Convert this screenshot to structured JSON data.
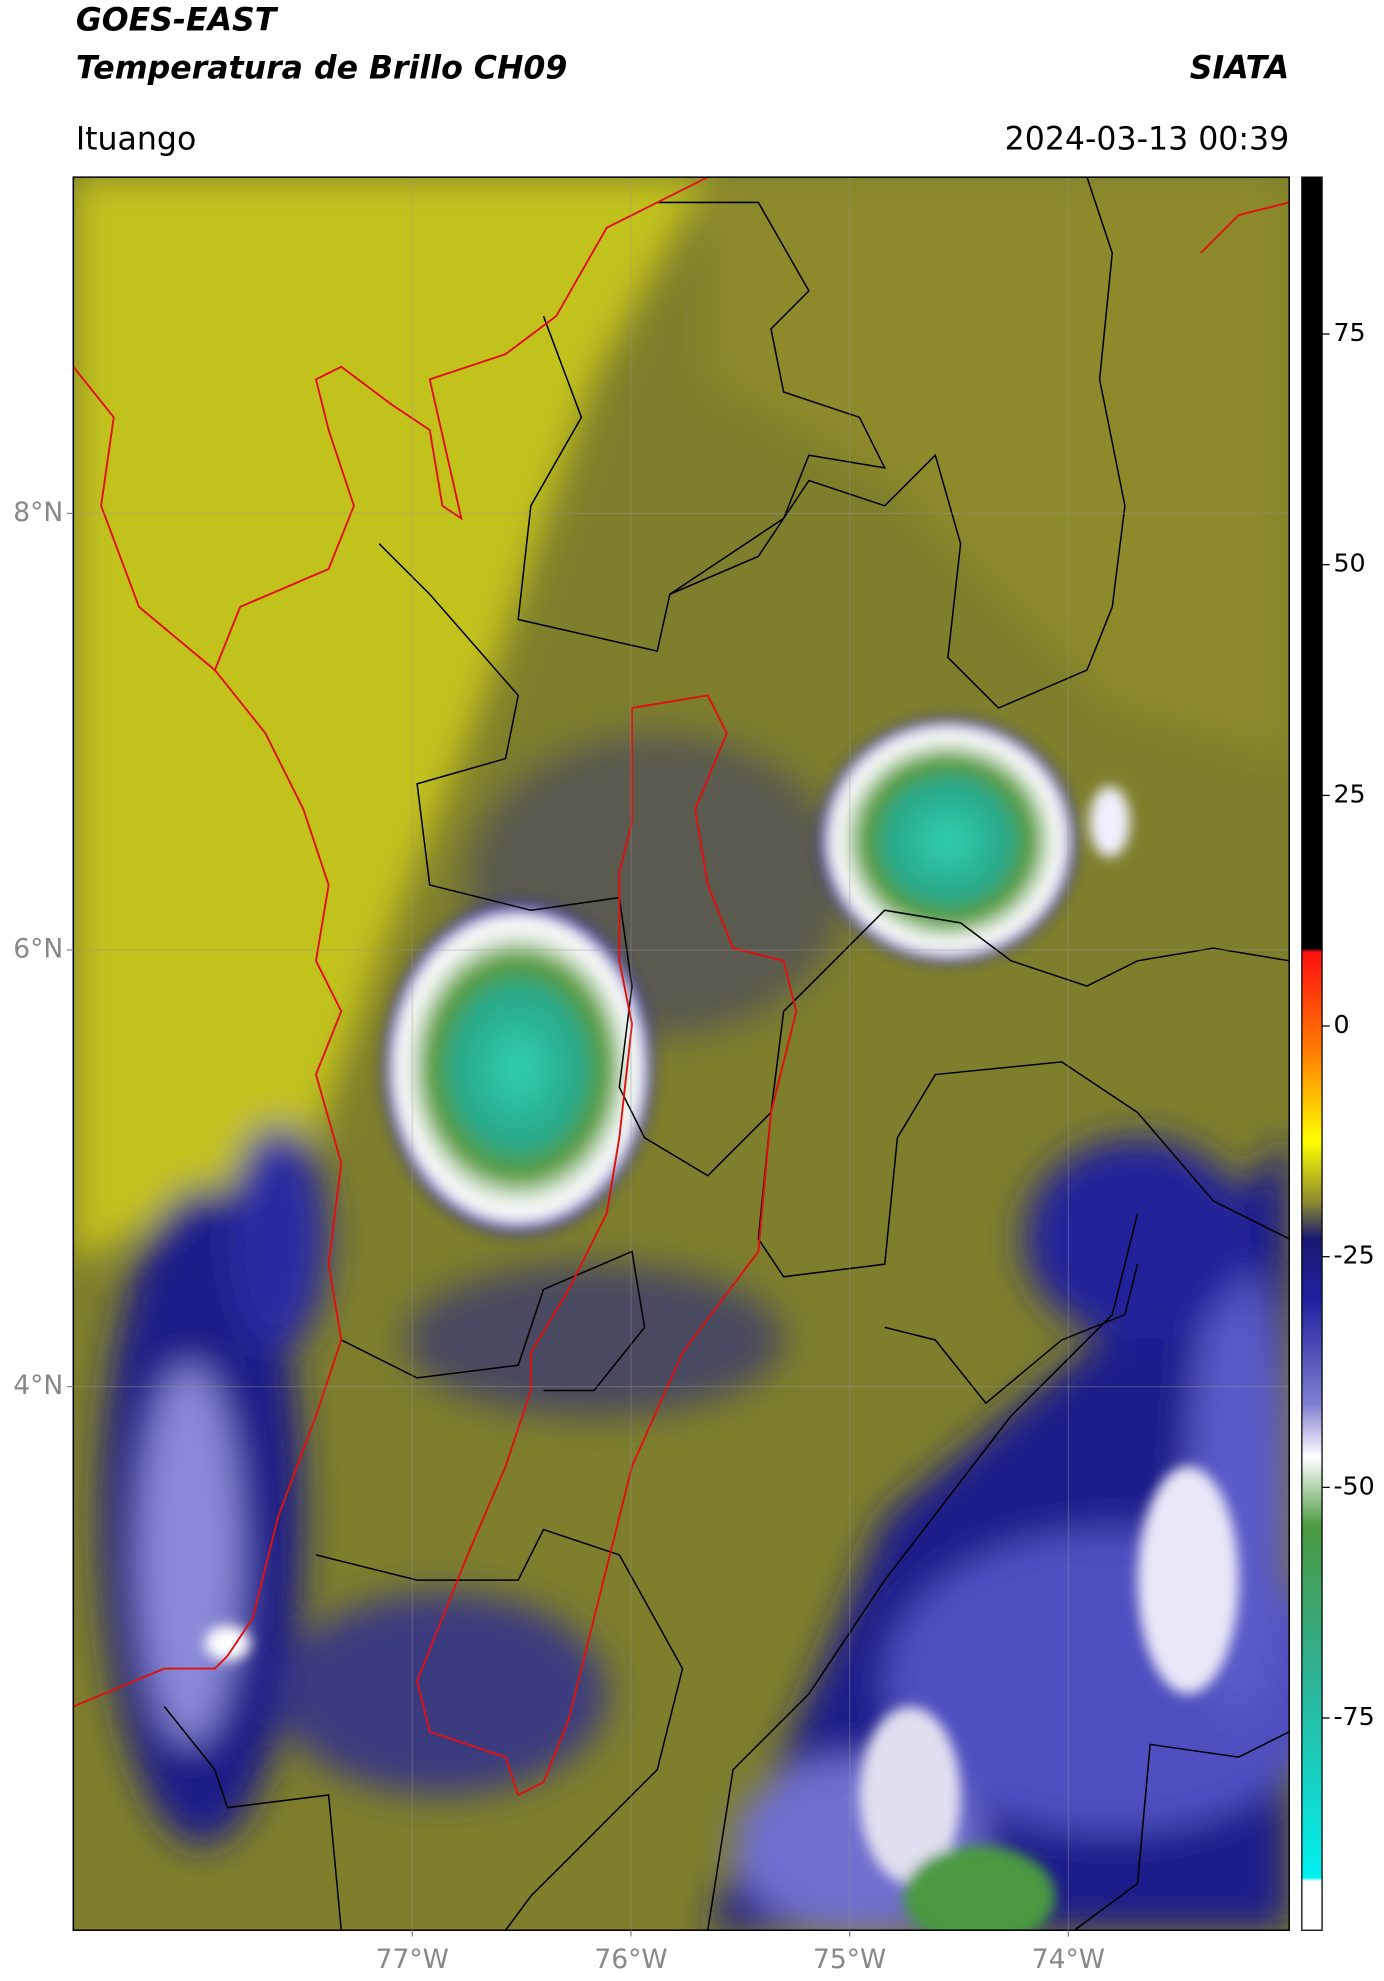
{
  "header": {
    "title": "GOES-EAST",
    "subtitle": "Temperatura de Brillo CH09",
    "brand": "SIATA",
    "location": "Ituango",
    "datetime": "2024-03-13 00:39"
  },
  "map": {
    "xlim": [
      -78.55,
      -72.99
    ],
    "ylim": [
      1.51,
      9.54
    ],
    "lat_ticks": [
      {
        "value": 8,
        "label": "8°N"
      },
      {
        "value": 6,
        "label": "6°N"
      },
      {
        "value": 4,
        "label": "4°N"
      }
    ],
    "lon_ticks": [
      {
        "value": -77,
        "label": "77°W"
      },
      {
        "value": -76,
        "label": "76°W"
      },
      {
        "value": -75,
        "label": "75°W"
      },
      {
        "value": -74,
        "label": "74°W"
      }
    ]
  },
  "colorbar": {
    "range": [
      -98,
      92
    ],
    "ticks": [
      75,
      50,
      25,
      0,
      -25,
      -50,
      -75
    ]
  }
}
